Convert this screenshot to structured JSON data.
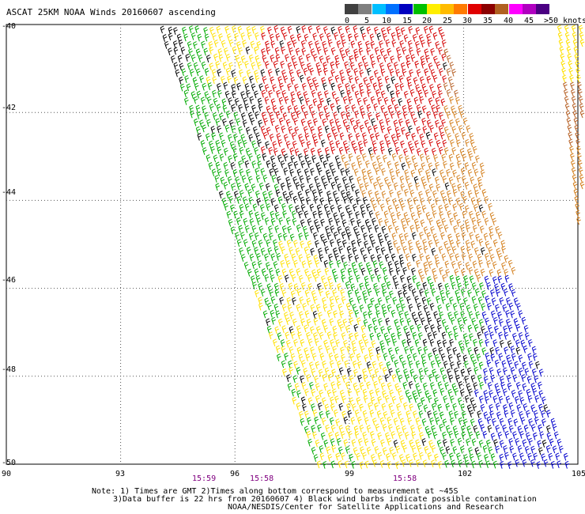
{
  "title": "ASCAT 25KM NOAA Winds 20160607 ascending",
  "legend": {
    "colors": [
      "#404040",
      "#7f7f7f",
      "#00bfff",
      "#0070ff",
      "#0000c0",
      "#00c000",
      "#ffee00",
      "#ffbb00",
      "#ff7a00",
      "#e00000",
      "#8b0000",
      "#b06020",
      "#ff00ff",
      "#b000c0",
      "#4b0082"
    ],
    "labels": [
      "0",
      "5",
      "10",
      "15",
      "20",
      "25",
      "30",
      "35",
      "40",
      "45",
      ">50 knots"
    ]
  },
  "lat_labels": [
    "-40",
    "-42",
    "-44",
    "-46",
    "-48",
    "-50"
  ],
  "lon_labels": [
    "90",
    "93",
    "96",
    "99",
    "102",
    "105"
  ],
  "time_labels": [
    "15:59",
    "15:58",
    "15:58"
  ],
  "notes": {
    "line1": "Note: 1) Times are GMT 2)Times along bottom correspond to measurement at ~45S",
    "line2": "3)Data buffer is 22 hrs from 20160607 4) Black wind barbs indicate possible contamination",
    "line3": "NOAA/NESDIS/Center for Satellite Applications and Research"
  },
  "barb_palette": {
    "black": "#000000",
    "blue": "#0000cc",
    "green": "#00aa00",
    "yellow": "#ffe000",
    "orange": "#d4801e",
    "red": "#d40000",
    "brown": "#b8642a",
    "pink": "#c0406a"
  }
}
